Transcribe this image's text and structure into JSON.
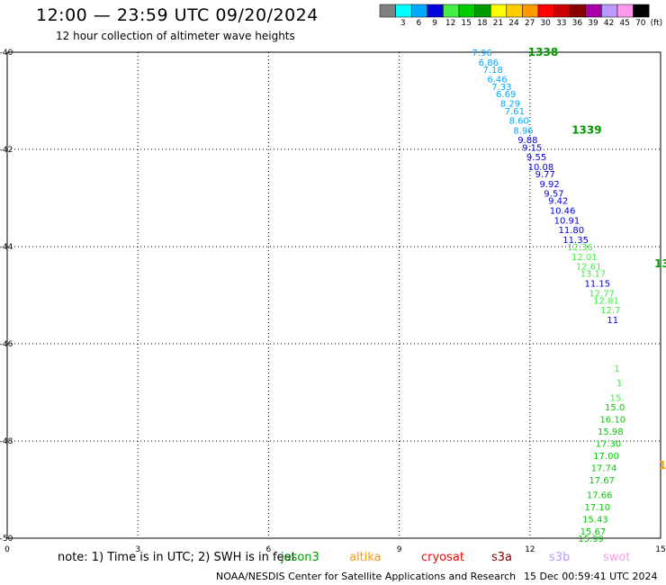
{
  "title": "12:00 — 23:59 UTC 09/20/2024",
  "subtitle": "12 hour collection of altimeter wave heights",
  "scale": {
    "colors": [
      "#808080",
      "#00ffff",
      "#00aaff",
      "#0000dd",
      "#44ee44",
      "#00cc00",
      "#009900",
      "#ffff00",
      "#ffcc00",
      "#ff9900",
      "#ff0000",
      "#cc0000",
      "#880000",
      "#aa00aa",
      "#bb99ff",
      "#ff99ee",
      "#000000"
    ],
    "labels": [
      "3",
      "6",
      "9",
      "12",
      "15",
      "18",
      "21",
      "24",
      "27",
      "30",
      "33",
      "36",
      "39",
      "42",
      "45",
      "70",
      "(ft)"
    ]
  },
  "footer": {
    "note": "note:  1) Time is in UTC; 2) SWH is in feet",
    "satellites": [
      {
        "name": "jason3",
        "color": "#009900"
      },
      {
        "name": "altika",
        "color": "#ff9900"
      },
      {
        "name": "cryosat",
        "color": "#ff0000"
      },
      {
        "name": "s3a",
        "color": "#880000"
      },
      {
        "name": "s3b",
        "color": "#bb99ff"
      },
      {
        "name": "swot",
        "color": "#ff99ee"
      }
    ],
    "credit": "NOAA/NESDIS Center for Satellite Applications and Research",
    "timestamp": "15 Dec 00:59:41 UTC 2024"
  },
  "chart_data": {
    "type": "scatter",
    "xlim": [
      0,
      15
    ],
    "ylim": [
      -50,
      -40
    ],
    "x_ticks": [
      "0",
      "3",
      "6",
      "9",
      "12",
      "15"
    ],
    "y_ticks": [
      "-40",
      "-42",
      "-44",
      "-46",
      "-48",
      "-50"
    ],
    "grid": true,
    "annotations": [
      {
        "text": "1338",
        "x": 12.0,
        "y": -40.0,
        "color": "#009900"
      },
      {
        "text": "1339",
        "x": 13.0,
        "y": -41.6,
        "color": "#009900"
      },
      {
        "text": "13",
        "x": 14.9,
        "y": -44.35,
        "color": "#009900"
      },
      {
        "text": "1",
        "x": 15.0,
        "y": -48.5,
        "color": "#ff9900"
      }
    ],
    "points": [
      {
        "x": 10.9,
        "y": -40.0,
        "label": "7.96",
        "color": "#00aaff"
      },
      {
        "x": 11.05,
        "y": -40.2,
        "label": "6.86",
        "color": "#00aaff"
      },
      {
        "x": 11.15,
        "y": -40.35,
        "label": "7.18",
        "color": "#00aaff"
      },
      {
        "x": 11.25,
        "y": -40.55,
        "label": "6.46",
        "color": "#00aaff"
      },
      {
        "x": 11.35,
        "y": -40.7,
        "label": "7.33",
        "color": "#00aaff"
      },
      {
        "x": 11.45,
        "y": -40.85,
        "label": "6.69",
        "color": "#00aaff"
      },
      {
        "x": 11.55,
        "y": -41.05,
        "label": "8.29",
        "color": "#00aaff"
      },
      {
        "x": 11.65,
        "y": -41.2,
        "label": "7.61",
        "color": "#00aaff"
      },
      {
        "x": 11.75,
        "y": -41.4,
        "label": "8.60",
        "color": "#00aaff"
      },
      {
        "x": 11.85,
        "y": -41.6,
        "label": "8.96",
        "color": "#00aaff"
      },
      {
        "x": 11.95,
        "y": -41.8,
        "label": "9.88",
        "color": "#0000dd"
      },
      {
        "x": 12.05,
        "y": -41.95,
        "label": "9.15",
        "color": "#0000dd"
      },
      {
        "x": 12.15,
        "y": -42.15,
        "label": "9.55",
        "color": "#0000dd"
      },
      {
        "x": 12.25,
        "y": -42.35,
        "label": "10.08",
        "color": "#0000dd"
      },
      {
        "x": 12.35,
        "y": -42.5,
        "label": "9.77",
        "color": "#0000dd"
      },
      {
        "x": 12.45,
        "y": -42.7,
        "label": "9.92",
        "color": "#0000dd"
      },
      {
        "x": 12.55,
        "y": -42.9,
        "label": "9.57",
        "color": "#0000dd"
      },
      {
        "x": 12.65,
        "y": -43.05,
        "label": "9.42",
        "color": "#0000dd"
      },
      {
        "x": 12.75,
        "y": -43.25,
        "label": "10.46",
        "color": "#0000dd"
      },
      {
        "x": 12.85,
        "y": -43.45,
        "label": "10.91",
        "color": "#0000dd"
      },
      {
        "x": 12.95,
        "y": -43.65,
        "label": "11.80",
        "color": "#0000dd"
      },
      {
        "x": 13.05,
        "y": -43.85,
        "label": "11.35",
        "color": "#0000dd"
      },
      {
        "x": 13.15,
        "y": -44.0,
        "label": "12.36",
        "color": "#44ee44"
      },
      {
        "x": 13.25,
        "y": -44.2,
        "label": "12.01",
        "color": "#44ee44"
      },
      {
        "x": 13.35,
        "y": -44.4,
        "label": "12.61",
        "color": "#44ee44"
      },
      {
        "x": 13.45,
        "y": -44.55,
        "label": "13.17",
        "color": "#44ee44"
      },
      {
        "x": 13.55,
        "y": -44.75,
        "label": "11.15",
        "color": "#0000dd"
      },
      {
        "x": 13.65,
        "y": -44.95,
        "label": "12.77",
        "color": "#44ee44"
      },
      {
        "x": 13.75,
        "y": -45.1,
        "label": "12.81",
        "color": "#44ee44"
      },
      {
        "x": 13.85,
        "y": -45.3,
        "label": "12.7",
        "color": "#44ee44"
      },
      {
        "x": 13.9,
        "y": -45.5,
        "label": "11",
        "color": "#0000dd"
      },
      {
        "x": 14.0,
        "y": -46.5,
        "label": "1",
        "color": "#44ee44"
      },
      {
        "x": 14.05,
        "y": -46.8,
        "label": "1",
        "color": "#44ee44"
      },
      {
        "x": 14.0,
        "y": -47.1,
        "label": "15.",
        "color": "#44ee44"
      },
      {
        "x": 13.95,
        "y": -47.3,
        "label": "15.0",
        "color": "#00cc00"
      },
      {
        "x": 13.9,
        "y": -47.55,
        "label": "16.10",
        "color": "#00cc00"
      },
      {
        "x": 13.85,
        "y": -47.8,
        "label": "15.98",
        "color": "#00cc00"
      },
      {
        "x": 13.8,
        "y": -48.05,
        "label": "17.30",
        "color": "#00cc00"
      },
      {
        "x": 13.75,
        "y": -48.3,
        "label": "17.00",
        "color": "#00cc00"
      },
      {
        "x": 13.7,
        "y": -48.55,
        "label": "17.74",
        "color": "#00cc00"
      },
      {
        "x": 13.65,
        "y": -48.8,
        "label": "17.67",
        "color": "#00cc00"
      },
      {
        "x": 13.6,
        "y": -49.1,
        "label": "17.66",
        "color": "#00cc00"
      },
      {
        "x": 13.55,
        "y": -49.35,
        "label": "17.10",
        "color": "#00cc00"
      },
      {
        "x": 13.5,
        "y": -49.6,
        "label": "15.43",
        "color": "#00cc00"
      },
      {
        "x": 13.45,
        "y": -49.85,
        "label": "15.67",
        "color": "#00cc00"
      },
      {
        "x": 13.4,
        "y": -50.0,
        "label": "15.99",
        "color": "#00cc00"
      }
    ]
  }
}
